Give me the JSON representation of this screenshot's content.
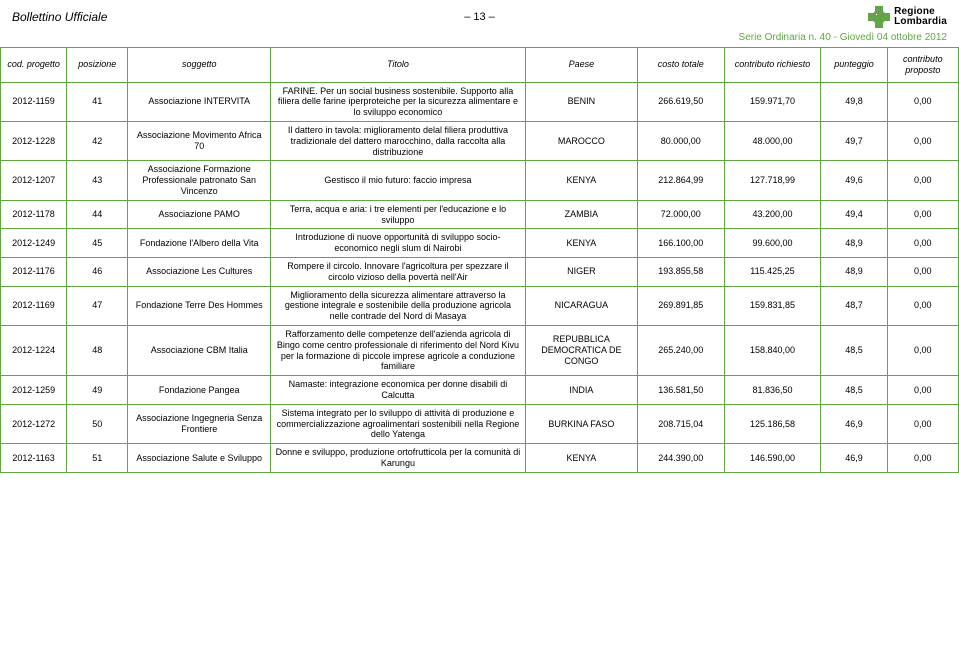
{
  "header": {
    "left_title": "Bollettino Ufficiale",
    "page_indicator": "– 13 –",
    "logo_top": "Regione",
    "logo_bottom": "Lombardia",
    "series_line": "Serie Ordinaria n. 40 - Giovedì 04 ottobre 2012"
  },
  "columns": {
    "cod": "cod. progetto",
    "posizione": "posizione",
    "soggetto": "soggetto",
    "titolo": "Titolo",
    "paese": "Paese",
    "costo": "costo totale",
    "richiesto": "contributo richiesto",
    "punteggio": "punteggio",
    "proposto": "contributo proposto"
  },
  "rows": [
    {
      "cod": "2012-1159",
      "pos": "41",
      "sog": "Associazione INTERVITA",
      "tit": "FARINE. Per un social business sostenibile. Supporto alla filiera delle farine iperproteiche per la sicurezza alimentare e lo sviluppo economico",
      "paese": "BENIN",
      "costo": "266.619,50",
      "rich": "159.971,70",
      "punt": "49,8",
      "prop": "0,00"
    },
    {
      "cod": "2012-1228",
      "pos": "42",
      "sog": "Associazione Movimento Africa 70",
      "tit": "Il dattero in tavola: miglioramento delal filiera produttiva tradizionale del dattero marocchino, dalla raccolta alla distribuzione",
      "paese": "MAROCCO",
      "costo": "80.000,00",
      "rich": "48.000,00",
      "punt": "49,7",
      "prop": "0,00"
    },
    {
      "cod": "2012-1207",
      "pos": "43",
      "sog": "Associazione Formazione Professionale patronato San Vincenzo",
      "tit": "Gestisco il mio futuro: faccio impresa",
      "paese": "KENYA",
      "costo": "212.864,99",
      "rich": "127.718,99",
      "punt": "49,6",
      "prop": "0,00"
    },
    {
      "cod": "2012-1178",
      "pos": "44",
      "sog": "Associazione PAMO",
      "tit": "Terra, acqua e aria: i tre elementi per l'educazione e lo sviluppo",
      "paese": "ZAMBIA",
      "costo": "72.000,00",
      "rich": "43.200,00",
      "punt": "49,4",
      "prop": "0,00"
    },
    {
      "cod": "2012-1249",
      "pos": "45",
      "sog": "Fondazione l'Albero della Vita",
      "tit": "Introduzione di nuove opportunità di sviluppo socio-economico negli slum di Nairobi",
      "paese": "KENYA",
      "costo": "166.100,00",
      "rich": "99.600,00",
      "punt": "48,9",
      "prop": "0,00"
    },
    {
      "cod": "2012-1176",
      "pos": "46",
      "sog": "Associazione Les Cultures",
      "tit": "Rompere il circolo. Innovare l'agricoltura per spezzare il circolo vizioso della povertà nell'Air",
      "paese": "NIGER",
      "costo": "193.855,58",
      "rich": "115.425,25",
      "punt": "48,9",
      "prop": "0,00"
    },
    {
      "cod": "2012-1169",
      "pos": "47",
      "sog": "Fondazione Terre Des Hommes",
      "tit": "Miglioramento della sicurezza alimentare attraverso la gestione integrale e sostenibile della produzione agricola nelle contrade del Nord di Masaya",
      "paese": "NICARAGUA",
      "costo": "269.891,85",
      "rich": "159.831,85",
      "punt": "48,7",
      "prop": "0,00"
    },
    {
      "cod": "2012-1224",
      "pos": "48",
      "sog": "Associazione CBM Italia",
      "tit": "Rafforzamento delle competenze dell'azienda agricola di Bingo come centro professionale di riferimento del Nord Kivu per la formazione di piccole imprese agricole a conduzione familiare",
      "paese": "REPUBBLICA DEMOCRATICA DE CONGO",
      "costo": "265.240,00",
      "rich": "158.840,00",
      "punt": "48,5",
      "prop": "0,00"
    },
    {
      "cod": "2012-1259",
      "pos": "49",
      "sog": "Fondazione Pangea",
      "tit": "Namaste: integrazione economica per donne disabili di Calcutta",
      "paese": "INDIA",
      "costo": "136.581,50",
      "rich": "81.836,50",
      "punt": "48,5",
      "prop": "0,00"
    },
    {
      "cod": "2012-1272",
      "pos": "50",
      "sog": "Associazione Ingegneria Senza Frontiere",
      "tit": "Sistema integrato per lo sviluppo di attività di produzione e commercializzazione agroalimentari sostenibili nella Regione dello Yatenga",
      "paese": "BURKINA FASO",
      "costo": "208.715,04",
      "rich": "125.186,58",
      "punt": "46,9",
      "prop": "0,00"
    },
    {
      "cod": "2012-1163",
      "pos": "51",
      "sog": "Associazione Salute e Sviluppo",
      "tit": "Donne e sviluppo, produzione ortofrutticola per la comunità di Karungu",
      "paese": "KENYA",
      "costo": "244.390,00",
      "rich": "146.590,00",
      "punt": "46,9",
      "prop": "0,00"
    }
  ],
  "style": {
    "border_color": "#5fa83f",
    "series_color": "#5fa83f",
    "background": "#ffffff",
    "header_fontsize": 12,
    "cell_fontsize": 9
  }
}
